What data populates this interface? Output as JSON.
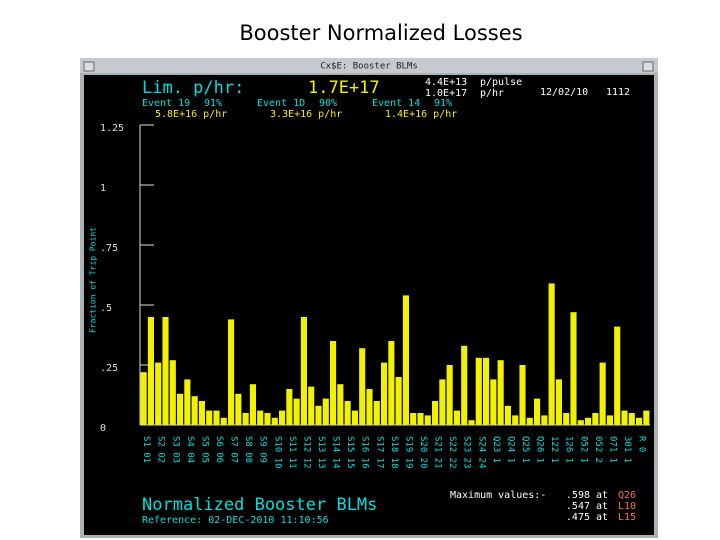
{
  "slide_title": "Booster Normalized Losses",
  "window": {
    "title": "Cx$E: Booster BLMs",
    "header": {
      "limit_label": "Lim. p/hr:",
      "limit_value": "1.7E+17",
      "intensity": [
        {
          "value": "4.4E+13",
          "unit": "p/pulse"
        },
        {
          "value": "1.0E+17",
          "unit": "p/hr"
        }
      ],
      "date": "12/02/10",
      "time": "1112",
      "events": [
        {
          "name": "Event 19",
          "percent": "91%",
          "rate": "5.8E+16 p/hr"
        },
        {
          "name": "Event 1D",
          "percent": "90%",
          "rate": "3.3E+16 p/hr"
        },
        {
          "name": "Event 14",
          "percent": "91%",
          "rate": "1.4E+16 p/hr"
        }
      ]
    },
    "footer": {
      "title": "Normalized Booster BLMs",
      "reference": "Reference: 02-DEC-2010 11:10:56",
      "max_label": "Maximum values:-",
      "max_values": [
        {
          "value": ".598",
          "at": "at",
          "location": "Q26"
        },
        {
          "value": ".547",
          "at": "at",
          "location": "L10"
        },
        {
          "value": ".475",
          "at": "at",
          "location": "L15"
        }
      ]
    }
  },
  "chart_data": {
    "type": "bar",
    "y_label": "Fraction of Trip Point",
    "color": "#f2f200",
    "categories": [
      "S1 01",
      null,
      "S2 02",
      null,
      "S3 03",
      null,
      "S4 04",
      null,
      "S5 05",
      null,
      "S6 06",
      null,
      "S7 07",
      null,
      "S8 08",
      null,
      "S9 09",
      null,
      "S10 10",
      null,
      "S11 11",
      null,
      "S12 12",
      null,
      "S13 13",
      null,
      "S14 14",
      null,
      "S15 15",
      null,
      "S16 16",
      null,
      "S17 17",
      null,
      "S18 18",
      null,
      "S19 19",
      null,
      "S20 20",
      null,
      "S21 21",
      null,
      "S22 22",
      null,
      "S23 23",
      null,
      "S24 24",
      null,
      "Q23 1",
      null,
      "Q24 1",
      null,
      "Q25 1",
      null,
      "Q26 1",
      null,
      "122 1",
      null,
      "126 1",
      null,
      "052 1",
      null,
      "052 2",
      null,
      "071 1",
      null,
      "301 1",
      null,
      "R 0",
      null
    ],
    "values": [
      0.22,
      0.45,
      0.26,
      0.45,
      0.27,
      0.13,
      0.19,
      0.12,
      0.1,
      0.06,
      0.06,
      0.03,
      0.44,
      0.13,
      0.05,
      0.17,
      0.06,
      0.05,
      0.03,
      0.06,
      0.15,
      0.11,
      0.45,
      0.16,
      0.08,
      0.11,
      0.35,
      0.17,
      0.1,
      0.06,
      0.32,
      0.15,
      0.1,
      0.26,
      0.35,
      0.2,
      0.54,
      0.05,
      0.05,
      0.04,
      0.1,
      0.19,
      0.25,
      0.06,
      0.33,
      0.02,
      0.28,
      0.28,
      0.19,
      0.27,
      0.08,
      0.04,
      0.25,
      0.03,
      0.11,
      0.04,
      0.59,
      0.19,
      0.05,
      0.47,
      0.02,
      0.03,
      0.05,
      0.26,
      0.04,
      0.41,
      0.06,
      0.05,
      0.03,
      0.06
    ],
    "ylim": [
      0,
      1.25
    ],
    "yticks": [
      0,
      {
        "value": 0.25,
        "label": ".25"
      },
      {
        "value": 0.5,
        "label": ".5"
      },
      {
        "value": 0.75,
        "label": ".75"
      },
      1,
      1.25
    ]
  }
}
